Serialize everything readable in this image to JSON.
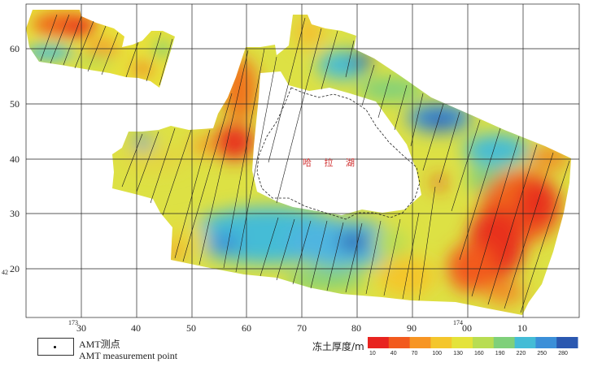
{
  "map": {
    "x_ticks": [
      {
        "value": "30",
        "prefix": "173"
      },
      {
        "value": "40",
        "prefix": ""
      },
      {
        "value": "50",
        "prefix": ""
      },
      {
        "value": "60",
        "prefix": ""
      },
      {
        "value": "70",
        "prefix": ""
      },
      {
        "value": "80",
        "prefix": ""
      },
      {
        "value": "90",
        "prefix": ""
      },
      {
        "value": "00",
        "prefix": "174"
      },
      {
        "value": "10",
        "prefix": ""
      }
    ],
    "y_ticks": [
      {
        "value": "60",
        "prefix": ""
      },
      {
        "value": "50",
        "prefix": ""
      },
      {
        "value": "40",
        "prefix": ""
      },
      {
        "value": "30",
        "prefix": ""
      },
      {
        "value": "20",
        "prefix": "42"
      }
    ],
    "lake_label": "哈 拉 湖"
  },
  "legend": {
    "symbol_label_cn": "AMT测点",
    "symbol_label_en": "AMT measurement point"
  },
  "colorbar": {
    "title": "冻土厚度/m",
    "labels": [
      "10",
      "40",
      "70",
      "100",
      "130",
      "160",
      "190",
      "220",
      "250",
      "280"
    ],
    "colors": [
      "#e8231f",
      "#f25a1e",
      "#f79523",
      "#f4c62c",
      "#e4e33a",
      "#b8dd52",
      "#7fd07a",
      "#44bcd6",
      "#3b8fd8",
      "#2b58b0"
    ]
  }
}
